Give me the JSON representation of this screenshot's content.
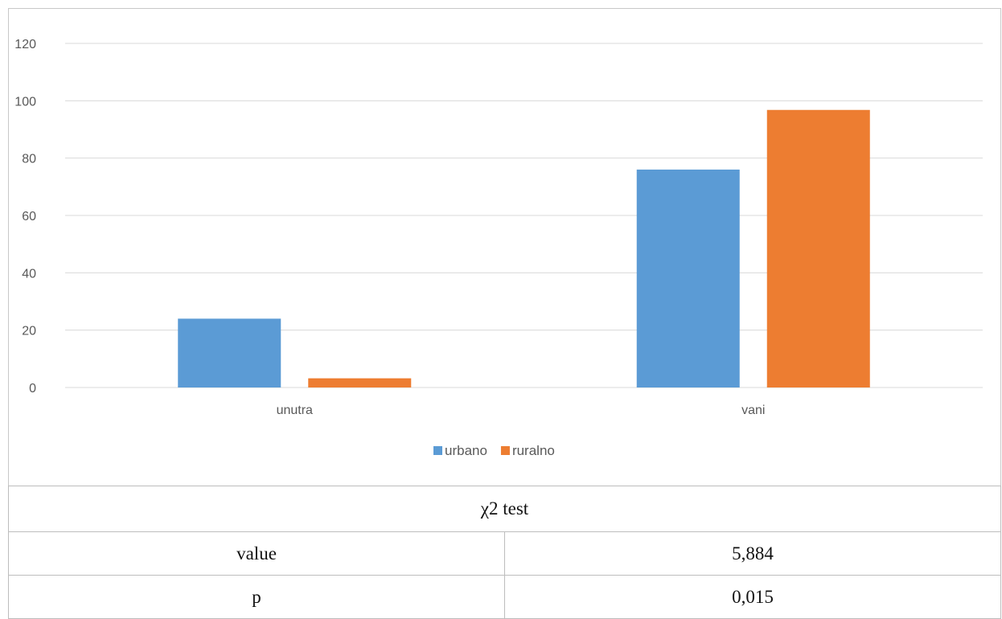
{
  "chart_data": {
    "type": "bar",
    "categories": [
      "unutra",
      "vani"
    ],
    "series": [
      {
        "name": "urbano",
        "values": [
          24,
          76
        ],
        "color": "#5b9bd5"
      },
      {
        "name": "ruralno",
        "values": [
          3.2,
          96.8
        ],
        "color": "#ed7d31"
      }
    ],
    "y_ticks": [
      "0",
      "20",
      "40",
      "60",
      "80",
      "100",
      "120"
    ],
    "ylim": [
      0,
      120
    ],
    "grid": true,
    "legend": "bottom-center"
  },
  "stats_table": {
    "header": "χ2 test",
    "rows": [
      {
        "label": "value",
        "value": "5,884"
      },
      {
        "label": "p",
        "value": "0,015"
      }
    ]
  }
}
